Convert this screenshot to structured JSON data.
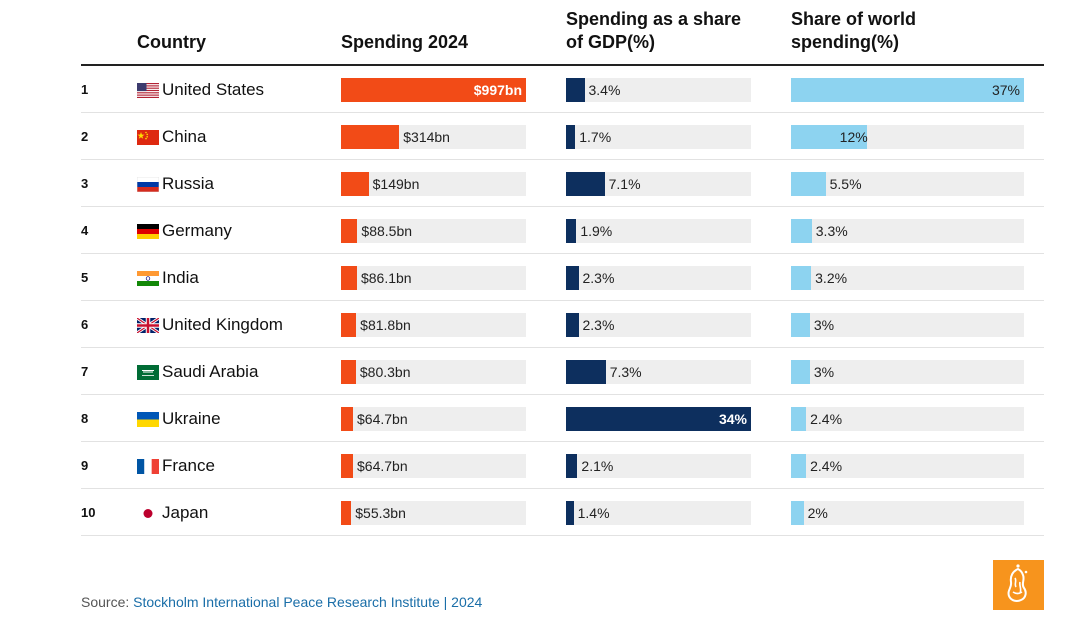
{
  "headers": {
    "country": "Country",
    "spending": "Spending 2024",
    "gdp_line1": "Spending as a share",
    "gdp_line2": "of GDP(%)",
    "world_line1": "Share of world",
    "world_line2": "spending(%)"
  },
  "chart_data": {
    "type": "table",
    "title": "",
    "columns": [
      "Country",
      "Spending 2024",
      "Spending as a share of GDP(%)",
      "Share of world spending(%)"
    ],
    "rows": [
      {
        "rank": "1",
        "country": "United States",
        "flag": "us-flag",
        "spending_bn": 997,
        "spending_label": "$997bn",
        "gdp_pct": 3.4,
        "gdp_label": "3.4%",
        "world_pct": 37,
        "world_label": "37%"
      },
      {
        "rank": "2",
        "country": "China",
        "flag": "cn-flag",
        "spending_bn": 314,
        "spending_label": "$314bn",
        "gdp_pct": 1.7,
        "gdp_label": "1.7%",
        "world_pct": 12,
        "world_label": "12%"
      },
      {
        "rank": "3",
        "country": "Russia",
        "flag": "ru-flag",
        "spending_bn": 149,
        "spending_label": "$149bn",
        "gdp_pct": 7.1,
        "gdp_label": "7.1%",
        "world_pct": 5.5,
        "world_label": "5.5%"
      },
      {
        "rank": "4",
        "country": "Germany",
        "flag": "de-flag",
        "spending_bn": 88.5,
        "spending_label": "$88.5bn",
        "gdp_pct": 1.9,
        "gdp_label": "1.9%",
        "world_pct": 3.3,
        "world_label": "3.3%"
      },
      {
        "rank": "5",
        "country": "India",
        "flag": "in-flag",
        "spending_bn": 86.1,
        "spending_label": "$86.1bn",
        "gdp_pct": 2.3,
        "gdp_label": "2.3%",
        "world_pct": 3.2,
        "world_label": "3.2%"
      },
      {
        "rank": "6",
        "country": "United Kingdom",
        "flag": "gb-flag",
        "spending_bn": 81.8,
        "spending_label": "$81.8bn",
        "gdp_pct": 2.3,
        "gdp_label": "2.3%",
        "world_pct": 3,
        "world_label": "3%"
      },
      {
        "rank": "7",
        "country": "Saudi Arabia",
        "flag": "sa-flag",
        "spending_bn": 80.3,
        "spending_label": "$80.3bn",
        "gdp_pct": 7.3,
        "gdp_label": "7.3%",
        "world_pct": 3,
        "world_label": "3%"
      },
      {
        "rank": "8",
        "country": "Ukraine",
        "flag": "ua-flag",
        "spending_bn": 64.7,
        "spending_label": "$64.7bn",
        "gdp_pct": 34,
        "gdp_label": "34%",
        "world_pct": 2.4,
        "world_label": "2.4%"
      },
      {
        "rank": "9",
        "country": "France",
        "flag": "fr-flag",
        "spending_bn": 64.7,
        "spending_label": "$64.7bn",
        "gdp_pct": 2.1,
        "gdp_label": "2.1%",
        "world_pct": 2.4,
        "world_label": "2.4%"
      },
      {
        "rank": "10",
        "country": "Japan",
        "flag": "jp-flag",
        "spending_bn": 55.3,
        "spending_label": "$55.3bn",
        "gdp_pct": 1.4,
        "gdp_label": "1.4%",
        "world_pct": 2,
        "world_label": "2%"
      }
    ],
    "scales": {
      "spending_max_bn": 997,
      "gdp_max_pct": 34,
      "world_max_pct": 37
    }
  },
  "colors": {
    "spending_bar": "#f24b17",
    "gdp_bar": "#0d2f5e",
    "world_bar": "#8dd3f0",
    "track": "#eeeeee"
  },
  "footer": {
    "source_prefix": "Source: ",
    "source_org": "Stockholm International Peace Research Institute | 2024"
  },
  "logo": {
    "icon": "al-jazeera-logo-icon"
  }
}
